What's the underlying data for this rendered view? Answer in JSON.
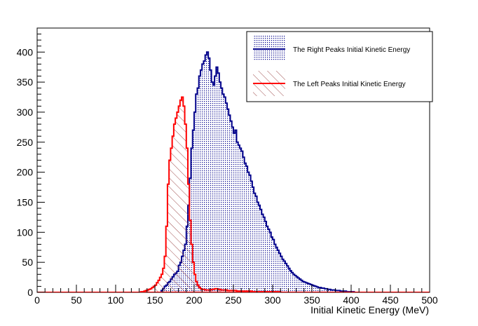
{
  "chart_data": {
    "type": "histogram",
    "title": "",
    "xlabel": "Initial Kinetic Energy (MeV)",
    "ylabel": "",
    "xlim": [
      0,
      500
    ],
    "ylim": [
      0,
      440
    ],
    "grid": false,
    "legend_position": "top-right",
    "x_ticks": [
      0,
      50,
      100,
      150,
      200,
      250,
      300,
      350,
      400,
      450,
      500
    ],
    "y_ticks": [
      0,
      50,
      100,
      150,
      200,
      250,
      300,
      350,
      400
    ],
    "bin_width": 2,
    "x": [
      130,
      132,
      134,
      136,
      138,
      140,
      142,
      144,
      146,
      148,
      150,
      152,
      154,
      156,
      158,
      160,
      162,
      164,
      166,
      168,
      170,
      172,
      174,
      176,
      178,
      180,
      182,
      184,
      186,
      188,
      190,
      192,
      194,
      196,
      198,
      200,
      202,
      204,
      206,
      208,
      210,
      212,
      214,
      216,
      218,
      220,
      222,
      224,
      226,
      228,
      230,
      232,
      234,
      236,
      238,
      240,
      242,
      244,
      246,
      248,
      250,
      252,
      254,
      256,
      258,
      260,
      262,
      264,
      266,
      268,
      270,
      272,
      274,
      276,
      278,
      280,
      282,
      284,
      286,
      288,
      290,
      292,
      294,
      296,
      298,
      300,
      302,
      304,
      306,
      308,
      310,
      312,
      314,
      316,
      318,
      320,
      322,
      324,
      326,
      328,
      330,
      332,
      334,
      336,
      338,
      340,
      342,
      344,
      346,
      348,
      350,
      352,
      354,
      356,
      358,
      360,
      362,
      364,
      366,
      368,
      370,
      372,
      374,
      376,
      378,
      380,
      382,
      384,
      386,
      388,
      390,
      392,
      394,
      396,
      398,
      400,
      402,
      404,
      406,
      408,
      410,
      412,
      414,
      416,
      418,
      420
    ],
    "series": [
      {
        "name": "The Right Peaks Initial Kinetic Energy",
        "color": "#00008b",
        "fill": "dots",
        "values": [
          0,
          0,
          0,
          0,
          0,
          0,
          0,
          0,
          0,
          0,
          0,
          0,
          0,
          0,
          3,
          6,
          10,
          12,
          16,
          18,
          22,
          26,
          30,
          32,
          35,
          45,
          50,
          60,
          70,
          80,
          110,
          145,
          190,
          240,
          270,
          300,
          330,
          340,
          360,
          370,
          380,
          385,
          395,
          400,
          390,
          370,
          350,
          345,
          360,
          375,
          365,
          350,
          340,
          330,
          325,
          315,
          305,
          295,
          285,
          275,
          265,
          270,
          250,
          245,
          240,
          235,
          225,
          215,
          210,
          200,
          195,
          185,
          175,
          165,
          160,
          150,
          145,
          138,
          130,
          125,
          118,
          110,
          105,
          100,
          92,
          88,
          80,
          75,
          70,
          65,
          60,
          55,
          52,
          48,
          44,
          40,
          36,
          33,
          30,
          28,
          26,
          24,
          22,
          20,
          18,
          17,
          16,
          15,
          14,
          13,
          12,
          11,
          10,
          9,
          8,
          8,
          7,
          7,
          6,
          6,
          5,
          5,
          4,
          4,
          4,
          3,
          3,
          3,
          2,
          2,
          2,
          2,
          1,
          1,
          1,
          1,
          1,
          0,
          0,
          0,
          0,
          0,
          0,
          0,
          0,
          0
        ]
      },
      {
        "name": "The Left Peaks Initial Kinetic Energy",
        "color": "#ff0000",
        "fill": "hatch",
        "values": [
          0,
          1,
          1,
          2,
          3,
          4,
          5,
          6,
          8,
          10,
          12,
          16,
          20,
          25,
          30,
          40,
          60,
          110,
          180,
          220,
          240,
          260,
          280,
          290,
          300,
          310,
          320,
          325,
          310,
          280,
          240,
          180,
          120,
          80,
          50,
          30,
          18,
          12,
          8,
          6,
          5,
          5,
          4,
          4,
          4,
          4,
          5,
          5,
          6,
          6,
          5,
          5,
          4,
          4,
          4,
          4,
          3,
          3,
          3,
          3,
          3,
          3,
          2,
          2,
          2,
          2,
          2,
          2,
          2,
          2,
          2,
          2,
          1,
          1,
          1,
          1,
          1,
          1,
          1,
          1,
          1,
          1,
          1,
          1,
          1,
          1,
          1,
          1,
          1,
          1,
          0,
          0,
          0,
          0,
          0,
          0,
          0,
          0,
          0,
          0,
          0,
          0,
          0,
          0,
          0,
          0,
          0,
          0,
          0,
          0,
          0,
          0,
          0,
          0,
          0,
          0,
          0,
          0,
          0,
          0,
          0,
          0,
          0,
          0,
          0,
          0,
          0,
          0,
          0,
          0,
          0,
          0,
          0,
          0,
          0,
          0,
          0,
          0,
          0,
          0,
          0,
          0,
          0,
          0,
          0,
          0
        ]
      }
    ]
  }
}
